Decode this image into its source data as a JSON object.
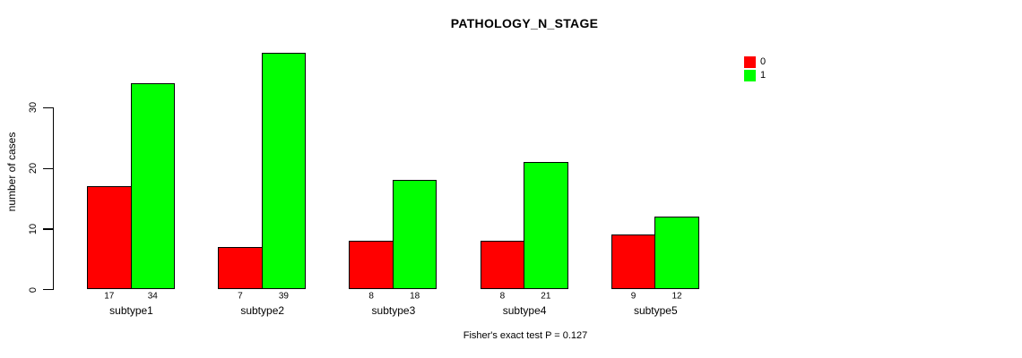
{
  "chart_data": {
    "type": "bar",
    "title": "PATHOLOGY_N_STAGE",
    "ylabel": "number of cases",
    "xlabel": "",
    "categories": [
      "subtype1",
      "subtype2",
      "subtype3",
      "subtype4",
      "subtype5"
    ],
    "series": [
      {
        "name": "0",
        "color": "#ff0000",
        "values": [
          17,
          7,
          8,
          8,
          9
        ]
      },
      {
        "name": "1",
        "color": "#00ff00",
        "values": [
          34,
          39,
          18,
          21,
          12
        ]
      }
    ],
    "bar_value_labels": [
      [
        17,
        34
      ],
      [
        7,
        39
      ],
      [
        8,
        18
      ],
      [
        8,
        21
      ],
      [
        9,
        12
      ]
    ],
    "yticks": [
      0,
      10,
      20,
      30
    ],
    "ylim": [
      0,
      39
    ],
    "grid": false,
    "legend_position": "top-right",
    "footnote": "Fisher's exact test P = 0.127"
  },
  "colors": {
    "background": "#ffffff",
    "axis": "#000000",
    "text": "#000000",
    "series0": "#ff0000",
    "series1": "#00ff00"
  }
}
